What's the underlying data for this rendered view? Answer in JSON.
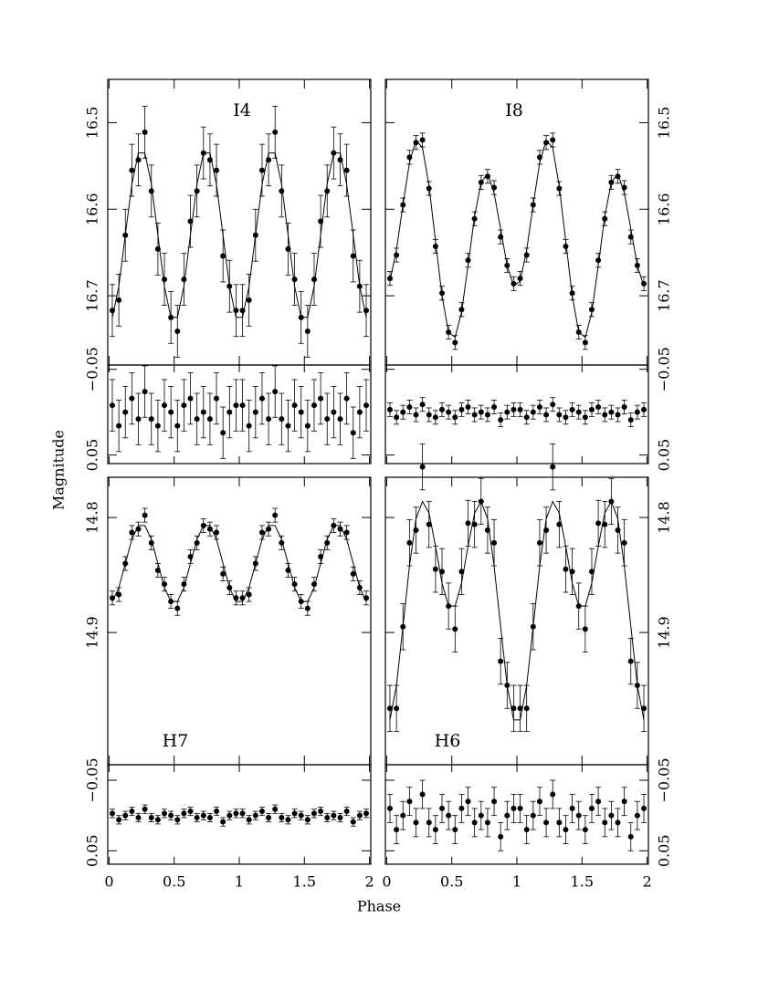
{
  "xlabel": "Phase",
  "ylabel": "Magnitude",
  "chart_data": [
    {
      "type": "scatter",
      "label": "I4",
      "x": [
        0.025,
        0.075,
        0.125,
        0.175,
        0.225,
        0.275,
        0.325,
        0.375,
        0.425,
        0.475,
        0.525,
        0.575,
        0.625,
        0.675,
        0.725,
        0.775,
        0.825,
        0.875,
        0.925,
        0.975,
        1.025,
        1.075,
        1.125,
        1.175,
        1.225,
        1.275,
        1.325,
        1.375,
        1.425,
        1.475,
        1.525,
        1.575,
        1.625,
        1.675,
        1.725,
        1.775,
        1.825,
        1.875,
        1.925,
        1.975
      ],
      "values": [
        16.717,
        16.705,
        16.63,
        16.555,
        16.543,
        16.511,
        16.579,
        16.646,
        16.681,
        16.725,
        16.741,
        16.681,
        16.614,
        16.579,
        16.535,
        16.543,
        16.555,
        16.654,
        16.689,
        16.717,
        16.717,
        16.705,
        16.63,
        16.555,
        16.543,
        16.511,
        16.579,
        16.646,
        16.681,
        16.725,
        16.741,
        16.681,
        16.614,
        16.579,
        16.535,
        16.543,
        16.555,
        16.654,
        16.689,
        16.717
      ],
      "model": [
        16.725,
        16.689,
        16.63,
        16.571,
        16.535,
        16.535,
        16.571,
        16.63,
        16.689,
        16.725,
        16.725,
        16.689,
        16.63,
        16.571,
        16.535,
        16.535,
        16.571,
        16.63,
        16.689,
        16.725,
        16.725,
        16.689,
        16.63,
        16.571,
        16.535,
        16.535,
        16.571,
        16.63,
        16.689,
        16.725,
        16.725,
        16.689,
        16.63,
        16.571,
        16.535,
        16.535,
        16.571,
        16.63,
        16.689,
        16.725
      ],
      "residuals": [
        -0.008,
        0.016,
        0,
        -0.016,
        0.008,
        -0.024,
        0.008,
        0.016,
        -0.008,
        0,
        0.016,
        -0.008,
        -0.016,
        0.008,
        0,
        0.008,
        -0.016,
        0.024,
        0,
        -0.008,
        -0.008,
        0.016,
        0,
        -0.016,
        0.008,
        -0.024,
        0.008,
        0.016,
        -0.008,
        0,
        0.016,
        -0.008,
        -0.016,
        0.008,
        0,
        0.008,
        -0.016,
        0.024,
        0,
        -0.008
      ],
      "error": 0.03,
      "residual_error": 0.03,
      "xlim": [
        -0.01,
        2.01
      ],
      "xticks": [
        0,
        0.5,
        1,
        1.5,
        2
      ],
      "ylim": [
        16.78,
        16.45
      ],
      "yticks": [
        16.5,
        16.6,
        16.7
      ],
      "residual_ylim": [
        0.06,
        -0.055
      ],
      "residual_yticks": [
        {
          "value": -0.05,
          "label": "−0.05"
        },
        0.05
      ]
    },
    {
      "type": "scatter",
      "label": "I8",
      "x": [
        0.025,
        0.075,
        0.125,
        0.175,
        0.225,
        0.275,
        0.325,
        0.375,
        0.425,
        0.475,
        0.525,
        0.575,
        0.625,
        0.675,
        0.725,
        0.775,
        0.825,
        0.875,
        0.925,
        0.975,
        1.025,
        1.075,
        1.125,
        1.175,
        1.225,
        1.275,
        1.325,
        1.375,
        1.425,
        1.475,
        1.525,
        1.575,
        1.625,
        1.675,
        1.725,
        1.775,
        1.825,
        1.875,
        1.925,
        1.975
      ],
      "values": [
        16.68,
        16.653,
        16.595,
        16.54,
        16.523,
        16.52,
        16.576,
        16.643,
        16.697,
        16.742,
        16.754,
        16.716,
        16.659,
        16.611,
        16.569,
        16.562,
        16.575,
        16.632,
        16.665,
        16.686,
        16.68,
        16.653,
        16.595,
        16.54,
        16.523,
        16.52,
        16.576,
        16.643,
        16.697,
        16.742,
        16.754,
        16.716,
        16.659,
        16.611,
        16.569,
        16.562,
        16.575,
        16.632,
        16.665,
        16.686
      ],
      "model": [
        16.683,
        16.647,
        16.595,
        16.546,
        16.52,
        16.529,
        16.573,
        16.637,
        16.7,
        16.742,
        16.748,
        16.719,
        16.665,
        16.608,
        16.569,
        16.559,
        16.581,
        16.623,
        16.665,
        16.689,
        16.683,
        16.647,
        16.595,
        16.546,
        16.52,
        16.529,
        16.573,
        16.637,
        16.7,
        16.742,
        16.748,
        16.719,
        16.665,
        16.608,
        16.569,
        16.559,
        16.581,
        16.623,
        16.665,
        16.689
      ],
      "residuals": [
        -0.003,
        0.006,
        0,
        -0.006,
        0.003,
        -0.009,
        0.003,
        0.006,
        -0.003,
        0,
        0.006,
        -0.003,
        -0.006,
        0.003,
        0,
        0.003,
        -0.006,
        0.009,
        0,
        -0.003,
        -0.003,
        0.006,
        0,
        -0.006,
        0.003,
        -0.009,
        0.003,
        0.006,
        -0.003,
        0,
        0.006,
        -0.003,
        -0.006,
        0.003,
        0,
        0.003,
        -0.006,
        0.009,
        0,
        -0.003
      ],
      "error": 0.008,
      "residual_error": 0.008,
      "xlim": [
        -0.01,
        2.01
      ],
      "xticks": [
        0,
        0.5,
        1,
        1.5,
        2
      ],
      "ylim": [
        16.78,
        16.45
      ],
      "yticks": [
        16.5,
        16.6,
        16.7
      ],
      "residual_ylim": [
        0.06,
        -0.055
      ],
      "residual_yticks": [
        {
          "value": -0.05,
          "label": "−0.05"
        },
        0.05
      ]
    },
    {
      "type": "scatter",
      "label": "H7",
      "x": [
        0.025,
        0.075,
        0.125,
        0.175,
        0.225,
        0.275,
        0.325,
        0.375,
        0.425,
        0.475,
        0.525,
        0.575,
        0.625,
        0.675,
        0.725,
        0.775,
        0.825,
        0.875,
        0.925,
        0.975,
        1.025,
        1.075,
        1.125,
        1.175,
        1.225,
        1.275,
        1.325,
        1.375,
        1.425,
        1.475,
        1.525,
        1.575,
        1.625,
        1.675,
        1.725,
        1.775,
        1.825,
        1.875,
        1.925,
        1.975
      ],
      "values": [
        14.87,
        14.867,
        14.84,
        14.813,
        14.81,
        14.798,
        14.822,
        14.846,
        14.858,
        14.873,
        14.879,
        14.858,
        14.834,
        14.822,
        14.807,
        14.81,
        14.813,
        14.849,
        14.861,
        14.87,
        14.87,
        14.867,
        14.84,
        14.813,
        14.81,
        14.798,
        14.822,
        14.846,
        14.858,
        14.873,
        14.879,
        14.858,
        14.834,
        14.822,
        14.807,
        14.81,
        14.813,
        14.849,
        14.861,
        14.87
      ],
      "model": [
        14.873,
        14.861,
        14.84,
        14.819,
        14.807,
        14.807,
        14.819,
        14.84,
        14.861,
        14.873,
        14.873,
        14.861,
        14.84,
        14.819,
        14.807,
        14.807,
        14.819,
        14.84,
        14.861,
        14.873,
        14.873,
        14.861,
        14.84,
        14.819,
        14.807,
        14.807,
        14.819,
        14.84,
        14.861,
        14.873,
        14.873,
        14.861,
        14.84,
        14.819,
        14.807,
        14.807,
        14.819,
        14.84,
        14.861,
        14.873
      ],
      "residuals": [
        -0.003,
        0.006,
        0,
        -0.006,
        0.003,
        -0.009,
        0.003,
        0.006,
        -0.003,
        0,
        0.006,
        -0.003,
        -0.006,
        0.003,
        0,
        0.003,
        -0.006,
        0.009,
        0,
        -0.003,
        -0.003,
        0.006,
        0,
        -0.006,
        0.003,
        -0.009,
        0.003,
        0.006,
        -0.003,
        0,
        0.006,
        -0.003,
        -0.006,
        0.003,
        0,
        0.003,
        -0.006,
        0.009,
        0,
        -0.003
      ],
      "error": 0.006,
      "residual_error": 0.006,
      "xlim": [
        -0.01,
        2.01
      ],
      "xticks": [
        0,
        0.5,
        1,
        1.5,
        2
      ],
      "ylim": [
        15.015,
        14.765
      ],
      "yticks": [
        14.8,
        14.9
      ],
      "residual_ylim": [
        0.069,
        -0.072
      ],
      "residual_yticks": [
        {
          "value": -0.05,
          "label": "−0.05"
        },
        0.05
      ]
    },
    {
      "type": "scatter",
      "label": "H6",
      "x": [
        0.025,
        0.075,
        0.125,
        0.175,
        0.225,
        0.275,
        0.325,
        0.375,
        0.425,
        0.475,
        0.525,
        0.575,
        0.625,
        0.675,
        0.725,
        0.775,
        0.825,
        0.875,
        0.925,
        0.975,
        1.025,
        1.075,
        1.125,
        1.175,
        1.225,
        1.275,
        1.325,
        1.375,
        1.425,
        1.475,
        1.525,
        1.575,
        1.625,
        1.675,
        1.725,
        1.775,
        1.825,
        1.875,
        1.925,
        1.975
      ],
      "values": [
        14.966,
        14.966,
        14.895,
        14.822,
        14.811,
        14.756,
        14.806,
        14.845,
        14.847,
        14.877,
        14.897,
        14.847,
        14.805,
        14.806,
        14.786,
        14.811,
        14.822,
        14.925,
        14.946,
        14.966,
        14.966,
        14.966,
        14.895,
        14.822,
        14.811,
        14.756,
        14.806,
        14.845,
        14.847,
        14.877,
        14.897,
        14.847,
        14.805,
        14.806,
        14.786,
        14.811,
        14.822,
        14.925,
        14.946,
        14.966
      ],
      "model": [
        14.976,
        14.946,
        14.895,
        14.842,
        14.801,
        14.786,
        14.796,
        14.825,
        14.857,
        14.877,
        14.877,
        14.857,
        14.825,
        14.796,
        14.786,
        14.801,
        14.842,
        14.895,
        14.946,
        14.976,
        14.976,
        14.946,
        14.895,
        14.842,
        14.801,
        14.786,
        14.796,
        14.825,
        14.857,
        14.877,
        14.877,
        14.857,
        14.825,
        14.796,
        14.786,
        14.801,
        14.842,
        14.895,
        14.946,
        14.976
      ],
      "residuals": [
        -0.01,
        0.02,
        0,
        -0.02,
        0.01,
        -0.03,
        0.01,
        0.02,
        -0.01,
        0,
        0.02,
        -0.01,
        -0.02,
        0.01,
        0,
        0.01,
        -0.02,
        0.03,
        0,
        -0.01,
        -0.01,
        0.02,
        0,
        -0.02,
        0.01,
        -0.03,
        0.01,
        0.02,
        -0.01,
        0,
        0.02,
        -0.01,
        -0.02,
        0.01,
        0,
        0.01,
        -0.02,
        0.03,
        0,
        -0.01
      ],
      "error": 0.02,
      "residual_error": 0.02,
      "xlim": [
        -0.01,
        2.01
      ],
      "xticks": [
        0,
        0.5,
        1,
        1.5,
        2
      ],
      "ylim": [
        15.015,
        14.765
      ],
      "yticks": [
        14.8,
        14.9
      ],
      "residual_ylim": [
        0.069,
        -0.072
      ],
      "residual_yticks": [
        {
          "value": -0.05,
          "label": "−0.05"
        },
        0.05
      ]
    }
  ]
}
